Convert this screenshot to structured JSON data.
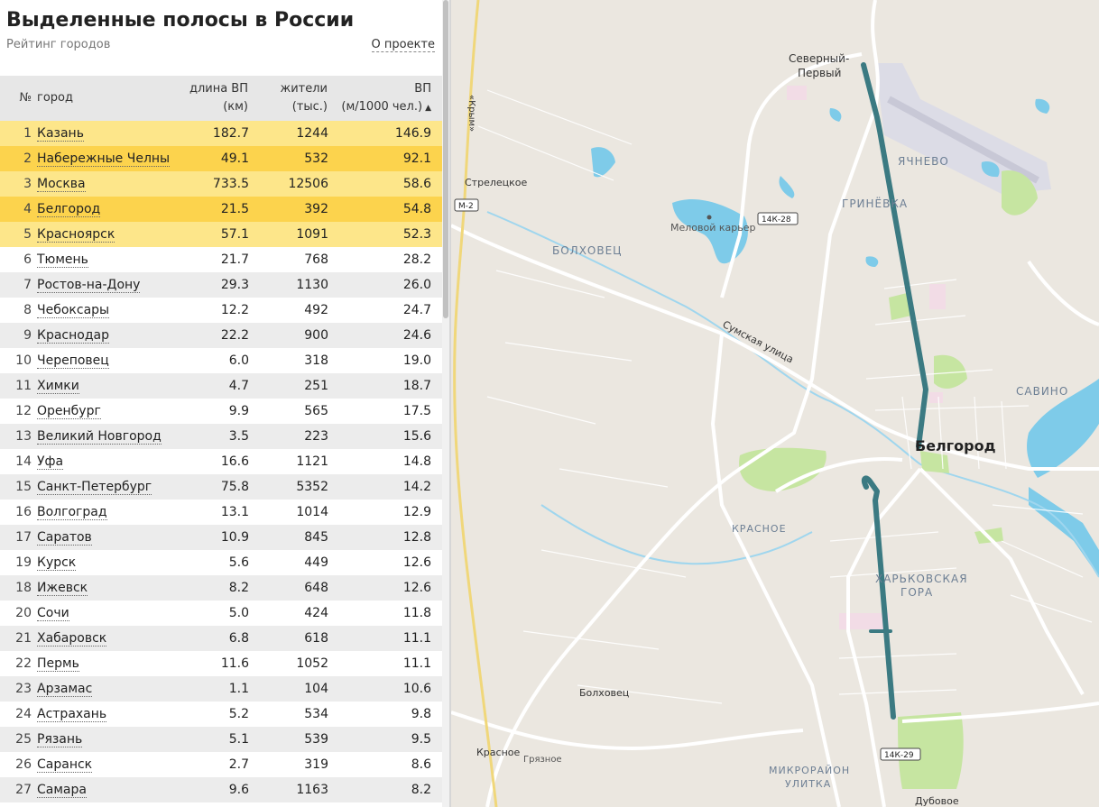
{
  "header": {
    "title": "Выделенные полосы в России",
    "subtitle": "Рейтинг городов",
    "about_link": "О проекте"
  },
  "table": {
    "columns": {
      "rank": "№",
      "city": "город",
      "length": [
        "длина ВП",
        "(км)"
      ],
      "population": [
        "жители",
        "(тыс.)"
      ],
      "rate": [
        "ВП",
        "(м/1000 чел.)"
      ]
    },
    "sort_indicator": "▲",
    "rows": [
      {
        "rank": "1",
        "city": "Казань",
        "length": "182.7",
        "population": "1244",
        "rate": "146.9"
      },
      {
        "rank": "2",
        "city": "Набережные Челны",
        "length": "49.1",
        "population": "532",
        "rate": "92.1"
      },
      {
        "rank": "3",
        "city": "Москва",
        "length": "733.5",
        "population": "12506",
        "rate": "58.6"
      },
      {
        "rank": "4",
        "city": "Белгород",
        "length": "21.5",
        "population": "392",
        "rate": "54.8"
      },
      {
        "rank": "5",
        "city": "Красноярск",
        "length": "57.1",
        "population": "1091",
        "rate": "52.3"
      },
      {
        "rank": "6",
        "city": "Тюмень",
        "length": "21.7",
        "population": "768",
        "rate": "28.2"
      },
      {
        "rank": "7",
        "city": "Ростов-на-Дону",
        "length": "29.3",
        "population": "1130",
        "rate": "26.0"
      },
      {
        "rank": "8",
        "city": "Чебоксары",
        "length": "12.2",
        "population": "492",
        "rate": "24.7"
      },
      {
        "rank": "9",
        "city": "Краснодар",
        "length": "22.2",
        "population": "900",
        "rate": "24.6"
      },
      {
        "rank": "10",
        "city": "Череповец",
        "length": "6.0",
        "population": "318",
        "rate": "19.0"
      },
      {
        "rank": "11",
        "city": "Химки",
        "length": "4.7",
        "population": "251",
        "rate": "18.7"
      },
      {
        "rank": "12",
        "city": "Оренбург",
        "length": "9.9",
        "population": "565",
        "rate": "17.5"
      },
      {
        "rank": "13",
        "city": "Великий Новгород",
        "length": "3.5",
        "population": "223",
        "rate": "15.6"
      },
      {
        "rank": "14",
        "city": "Уфа",
        "length": "16.6",
        "population": "1121",
        "rate": "14.8"
      },
      {
        "rank": "15",
        "city": "Санкт-Петербург",
        "length": "75.8",
        "population": "5352",
        "rate": "14.2"
      },
      {
        "rank": "16",
        "city": "Волгоград",
        "length": "13.1",
        "population": "1014",
        "rate": "12.9"
      },
      {
        "rank": "17",
        "city": "Саратов",
        "length": "10.9",
        "population": "845",
        "rate": "12.8"
      },
      {
        "rank": "19",
        "city": "Курск",
        "length": "5.6",
        "population": "449",
        "rate": "12.6"
      },
      {
        "rank": "18",
        "city": "Ижевск",
        "length": "8.2",
        "population": "648",
        "rate": "12.6"
      },
      {
        "rank": "20",
        "city": "Сочи",
        "length": "5.0",
        "population": "424",
        "rate": "11.8"
      },
      {
        "rank": "21",
        "city": "Хабаровск",
        "length": "6.8",
        "population": "618",
        "rate": "11.1"
      },
      {
        "rank": "22",
        "city": "Пермь",
        "length": "11.6",
        "population": "1052",
        "rate": "11.1"
      },
      {
        "rank": "23",
        "city": "Арзамас",
        "length": "1.1",
        "population": "104",
        "rate": "10.6"
      },
      {
        "rank": "24",
        "city": "Астрахань",
        "length": "5.2",
        "population": "534",
        "rate": "9.8"
      },
      {
        "rank": "25",
        "city": "Рязань",
        "length": "5.1",
        "population": "539",
        "rate": "9.5"
      },
      {
        "rank": "26",
        "city": "Саранск",
        "length": "2.7",
        "population": "319",
        "rate": "8.6"
      },
      {
        "rank": "27",
        "city": "Самара",
        "length": "9.6",
        "population": "1163",
        "rate": "8.2"
      }
    ]
  },
  "map": {
    "colors": {
      "land": "#ebe7e0",
      "road": "#ffffff",
      "water": "#7ecbe9",
      "park": "#c8e6a4",
      "highway": "#f0d77a",
      "bus_lane": "#3b7a82",
      "airport": "#d9d9e3"
    },
    "labels": {
      "city": "Белгород",
      "severny": [
        "Северный-",
        "Первый"
      ],
      "yachnevo": "ЯЧНЕВО",
      "grinevka": "ГРИНЁВКА",
      "streletskoe": "Стрелецкое",
      "melovoy": "Меловой карьер",
      "bolkhovets_district": "БОЛХОВЕЦ",
      "sumskaya": "Сумская улица",
      "savino": "САВИНО",
      "krasnoe_district": "КРАСНОЕ",
      "kharkovskaya": [
        "ХАРЬКОВСКАЯ",
        "ГОРА"
      ],
      "bolkhovets": "Болховец",
      "krasnoe": "Красное",
      "gryaznoe": "Грязное",
      "ulitka": [
        "МИКРОРАЙОН",
        "УЛИТКА"
      ],
      "krym": "«Крым»",
      "dubovoe": "Дубовое"
    },
    "shields": {
      "m2": "М-2",
      "k28": "14К-28",
      "k29": "14К-29"
    }
  }
}
